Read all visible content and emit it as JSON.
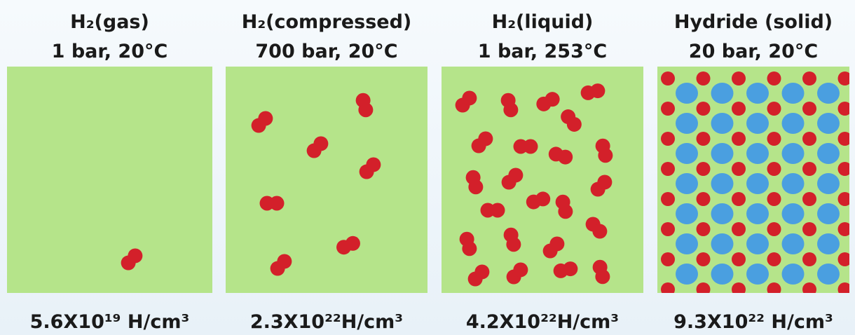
{
  "panels": [
    {
      "title": "H₂(gas)",
      "conditions": "1 bar, 20°C",
      "density": "5.6X10¹⁹ H/cm³"
    },
    {
      "title": "H₂(compressed)",
      "conditions": "700 bar, 20°C",
      "density": "2.3X10²²H/cm³"
    },
    {
      "title": "H₂(liquid)",
      "conditions": "1 bar, 253°C",
      "density": "4.2X10²²H/cm³"
    },
    {
      "title": "Hydride  (solid)",
      "conditions": "20 bar, 20°C",
      "density": "9.3X10²² H/cm³"
    }
  ]
}
